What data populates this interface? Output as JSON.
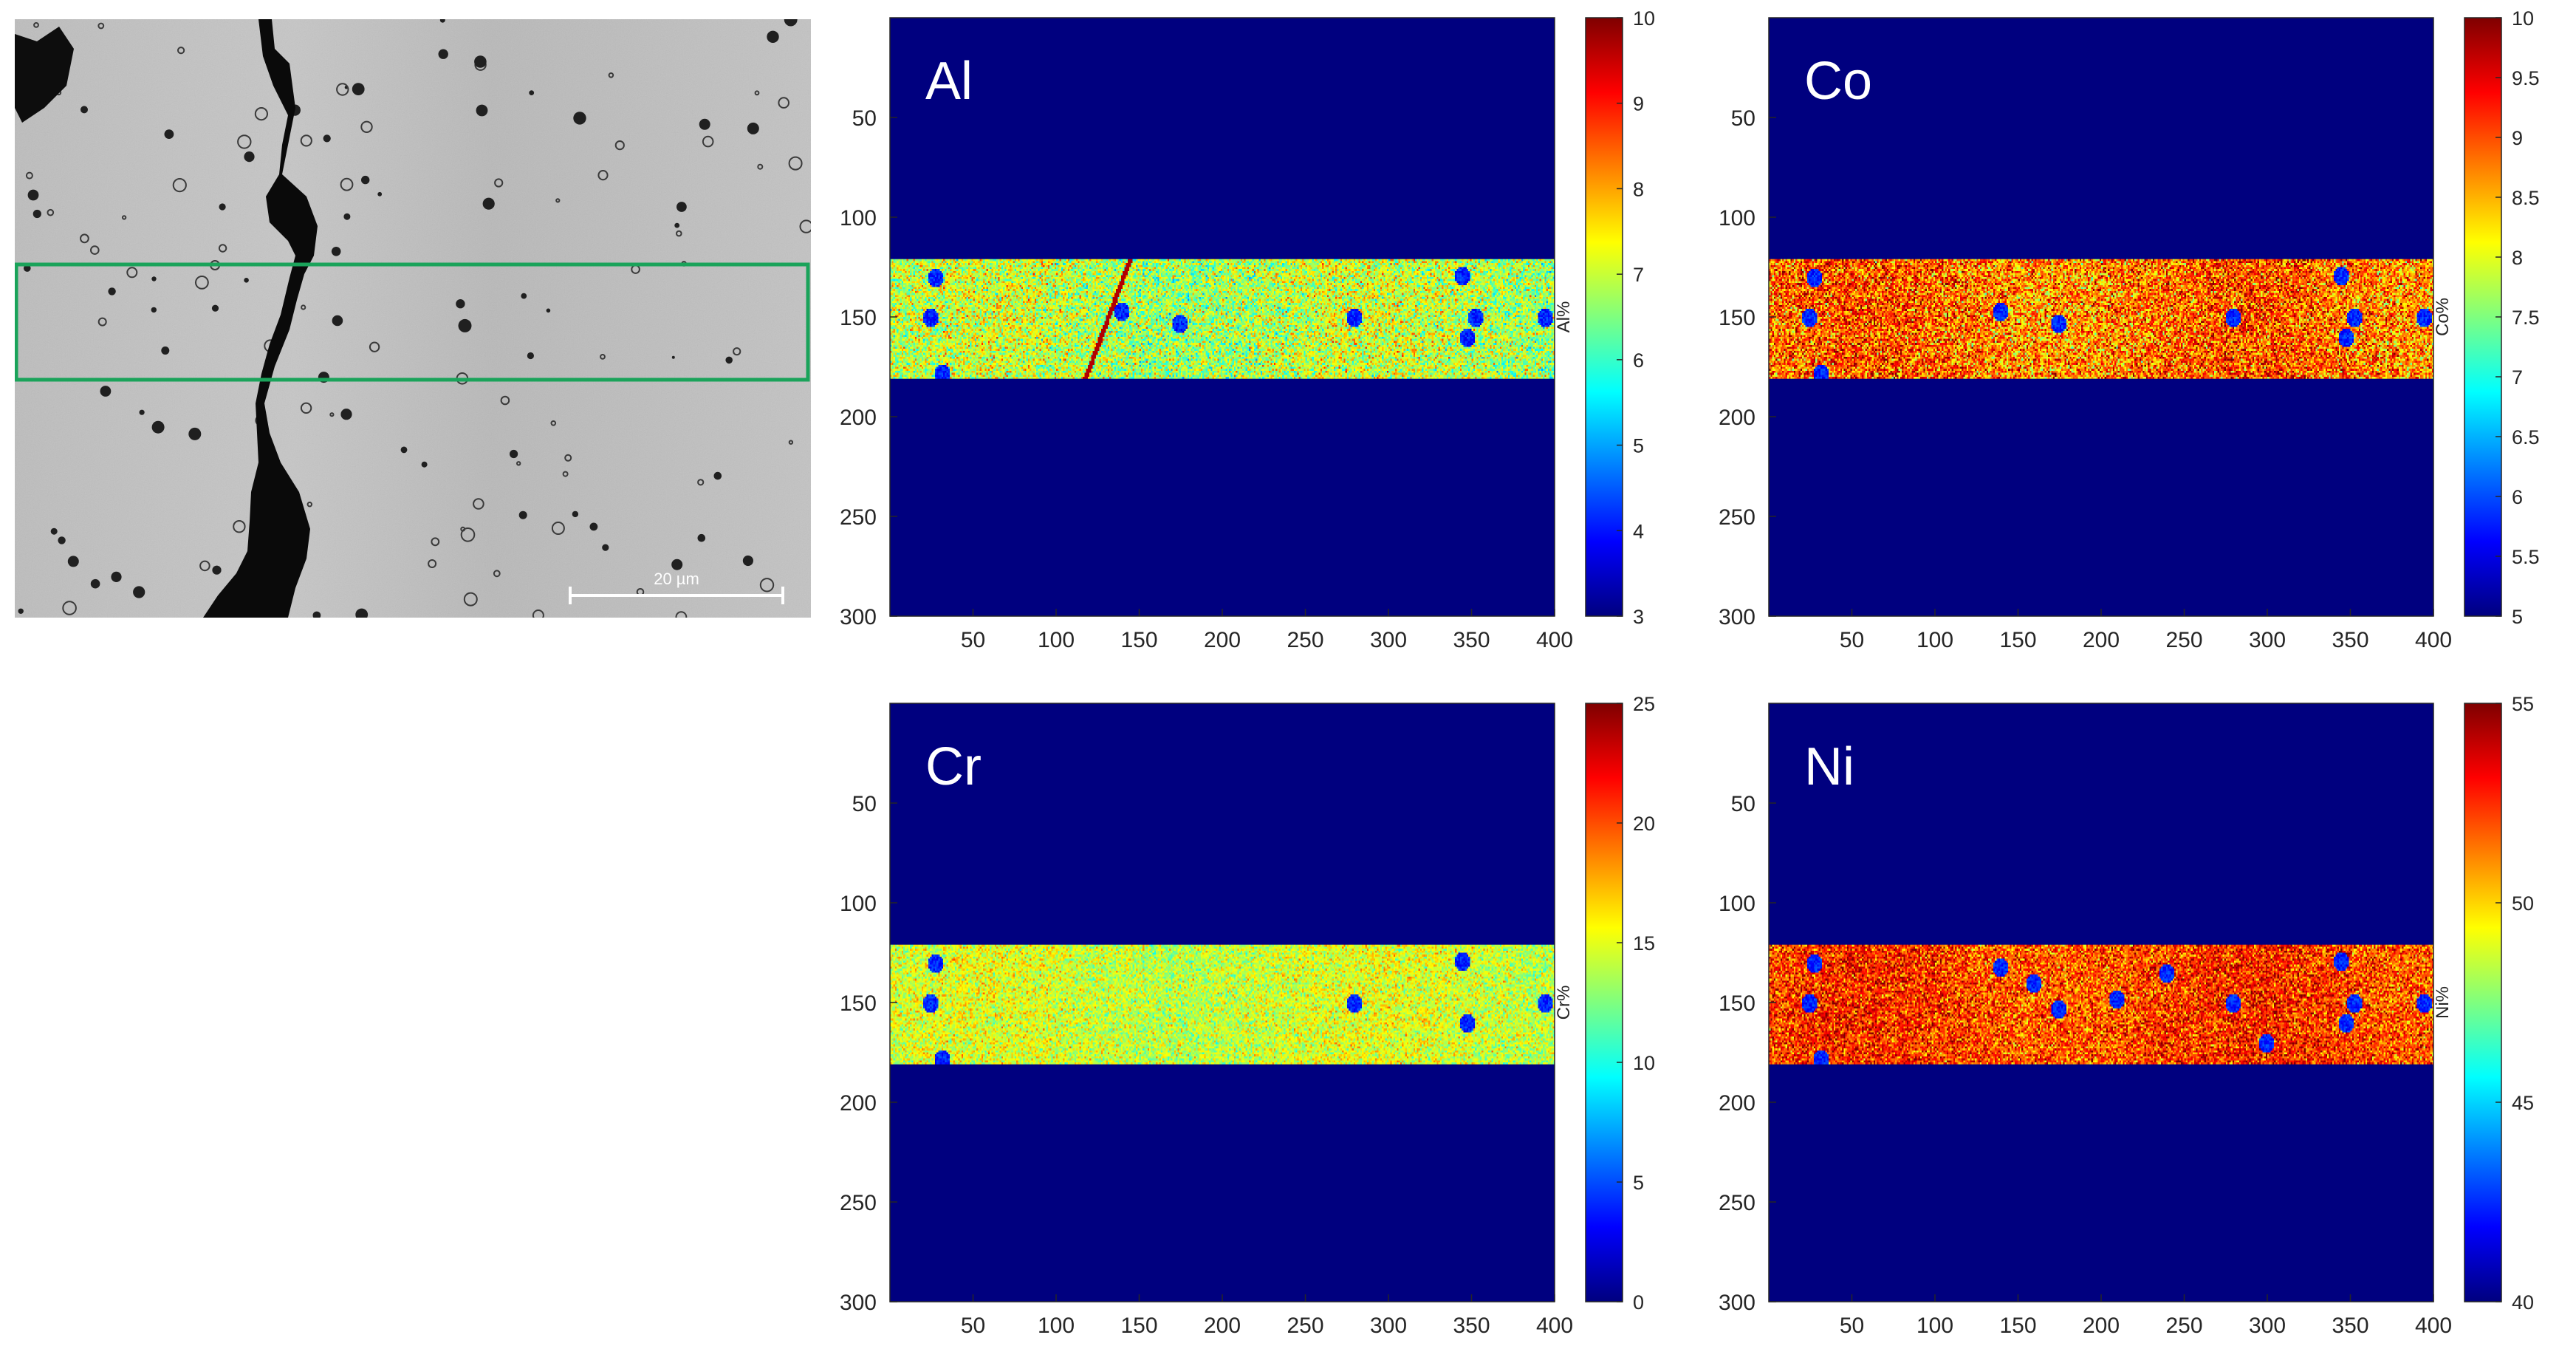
{
  "sem_image": {
    "scale_bar_label": "20 µm",
    "roi_color": "#1aa35a"
  },
  "colormap": [
    "#00007f",
    "#0000ff",
    "#007fff",
    "#00ffff",
    "#7fff7f",
    "#ffff00",
    "#ff7f00",
    "#ff0000",
    "#7f0000"
  ],
  "background_color": "#00007f",
  "chart_data": [
    {
      "type": "heatmap",
      "element": "Al",
      "cbar_label": "Al%",
      "clim": [
        3,
        10
      ],
      "cbar_ticks": [
        3,
        4,
        5,
        6,
        7,
        8,
        9,
        10
      ],
      "cbar_tick_labels": [
        "3",
        "4",
        "5",
        "6",
        "7",
        "8",
        "9",
        "10"
      ],
      "xlim": [
        0,
        400
      ],
      "ylim": [
        0,
        300
      ],
      "xticks": [
        50,
        100,
        150,
        200,
        250,
        300,
        350,
        400
      ],
      "xtick_labels": [
        "50",
        "100",
        "150",
        "200",
        "250",
        "300",
        "350",
        "400"
      ],
      "yticks": [
        50,
        100,
        150,
        200,
        250,
        300
      ],
      "ytick_labels": [
        "50",
        "100",
        "150",
        "200",
        "250",
        "300"
      ],
      "band_rows": [
        121,
        181
      ],
      "band_mean": 6.9,
      "band_spread": 0.7,
      "spots": [
        [
          28,
          130
        ],
        [
          25,
          150
        ],
        [
          32,
          178
        ],
        [
          140,
          147
        ],
        [
          175,
          153
        ],
        [
          280,
          150
        ],
        [
          345,
          129
        ],
        [
          348,
          160
        ],
        [
          353,
          150
        ],
        [
          395,
          150
        ]
      ],
      "hot_streak": true
    },
    {
      "type": "heatmap",
      "element": "Co",
      "cbar_label": "Co%",
      "clim": [
        5,
        10
      ],
      "cbar_ticks": [
        5,
        5.5,
        6,
        6.5,
        7,
        7.5,
        8,
        8.5,
        9,
        9.5,
        10
      ],
      "cbar_tick_labels": [
        "5",
        "5.5",
        "6",
        "6.5",
        "7",
        "7.5",
        "8",
        "8.5",
        "9",
        "9.5",
        "10"
      ],
      "xlim": [
        0,
        400
      ],
      "ylim": [
        0,
        300
      ],
      "xticks": [
        50,
        100,
        150,
        200,
        250,
        300,
        350,
        400
      ],
      "xtick_labels": [
        "50",
        "100",
        "150",
        "200",
        "250",
        "300",
        "350",
        "400"
      ],
      "yticks": [
        50,
        100,
        150,
        200,
        250,
        300
      ],
      "ytick_labels": [
        "50",
        "100",
        "150",
        "200",
        "250",
        "300"
      ],
      "band_rows": [
        121,
        181
      ],
      "band_mean": 8.8,
      "band_spread": 0.6,
      "spots": [
        [
          28,
          130
        ],
        [
          25,
          150
        ],
        [
          32,
          178
        ],
        [
          140,
          147
        ],
        [
          175,
          153
        ],
        [
          280,
          150
        ],
        [
          345,
          129
        ],
        [
          348,
          160
        ],
        [
          353,
          150
        ],
        [
          395,
          150
        ]
      ],
      "hot_streak": false
    },
    {
      "type": "heatmap",
      "element": "Cr",
      "cbar_label": "Cr%",
      "clim": [
        0,
        25
      ],
      "cbar_ticks": [
        0,
        5,
        10,
        15,
        20,
        25
      ],
      "cbar_tick_labels": [
        "0",
        "5",
        "10",
        "15",
        "20",
        "25"
      ],
      "xlim": [
        0,
        400
      ],
      "ylim": [
        0,
        300
      ],
      "xticks": [
        50,
        100,
        150,
        200,
        250,
        300,
        350,
        400
      ],
      "xtick_labels": [
        "50",
        "100",
        "150",
        "200",
        "250",
        "300",
        "350",
        "400"
      ],
      "yticks": [
        50,
        100,
        150,
        200,
        250,
        300
      ],
      "ytick_labels": [
        "50",
        "100",
        "150",
        "200",
        "250",
        "300"
      ],
      "band_rows": [
        121,
        181
      ],
      "band_mean": 14.5,
      "band_spread": 1.8,
      "spots": [
        [
          28,
          130
        ],
        [
          25,
          150
        ],
        [
          32,
          178
        ],
        [
          280,
          150
        ],
        [
          345,
          129
        ],
        [
          348,
          160
        ],
        [
          395,
          150
        ]
      ],
      "hot_streak": false
    },
    {
      "type": "heatmap",
      "element": "Ni",
      "cbar_label": "Ni%",
      "clim": [
        40,
        55
      ],
      "cbar_ticks": [
        45,
        50,
        55
      ],
      "cbar_tick_labels": [
        "45",
        "50",
        "55"
      ],
      "cbar_extra_ticks": [
        40
      ],
      "cbar_extra_tick_labels": [
        "40"
      ],
      "xlim": [
        0,
        400
      ],
      "ylim": [
        0,
        300
      ],
      "xticks": [
        50,
        100,
        150,
        200,
        250,
        300,
        350,
        400
      ],
      "xtick_labels": [
        "50",
        "100",
        "150",
        "200",
        "250",
        "300",
        "350",
        "400"
      ],
      "yticks": [
        50,
        100,
        150,
        200,
        250,
        300
      ],
      "ytick_labels": [
        "50",
        "100",
        "150",
        "200",
        "250",
        "300"
      ],
      "band_rows": [
        121,
        181
      ],
      "band_mean": 52.2,
      "band_spread": 1.5,
      "spots": [
        [
          28,
          130
        ],
        [
          25,
          150
        ],
        [
          32,
          178
        ],
        [
          140,
          132
        ],
        [
          175,
          153
        ],
        [
          210,
          148
        ],
        [
          280,
          150
        ],
        [
          345,
          129
        ],
        [
          348,
          160
        ],
        [
          353,
          150
        ],
        [
          395,
          150
        ],
        [
          160,
          140
        ],
        [
          240,
          135
        ],
        [
          300,
          170
        ]
      ],
      "hot_streak": false
    }
  ]
}
